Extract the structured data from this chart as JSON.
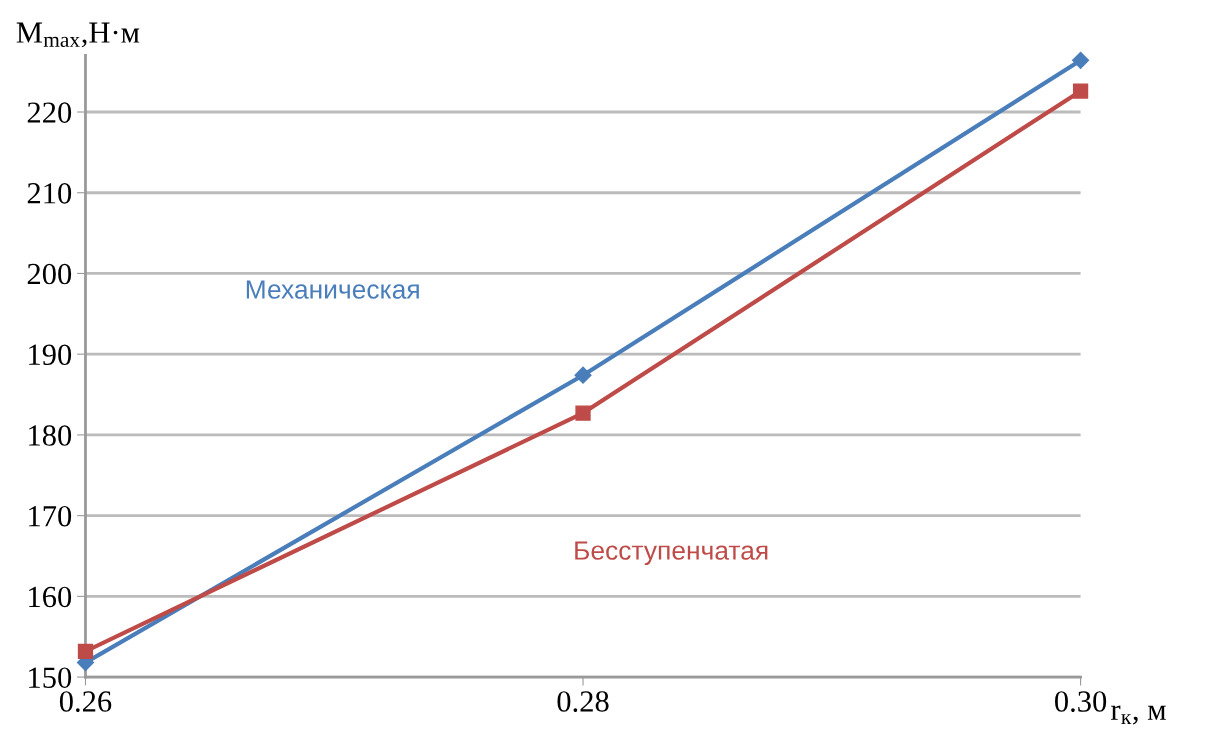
{
  "chart_data": {
    "type": "line",
    "xlabel": "r$_{к}$, м",
    "ylabel": "M$_{max}$,Н·м",
    "x": [
      0.26,
      0.28,
      0.3
    ],
    "series": [
      {
        "name": "Механическая",
        "color": "#4a7ebb",
        "values": [
          151.8,
          187.4,
          226.4
        ],
        "marker": "diamond"
      },
      {
        "name": "Бесступенчатая",
        "color": "#be4b48",
        "values": [
          153.2,
          182.7,
          222.6
        ],
        "marker": "square"
      }
    ],
    "xlim": [
      0.26,
      0.3
    ],
    "xticks": [
      0.26,
      0.28,
      {
        "value": 0.3,
        "label": "0.30"
      }
    ],
    "ylim": [
      150,
      227
    ],
    "yticks": [
      150,
      160,
      170,
      180,
      190,
      200,
      210,
      220
    ],
    "grid": "y",
    "legend": false,
    "line_style": "solid"
  }
}
